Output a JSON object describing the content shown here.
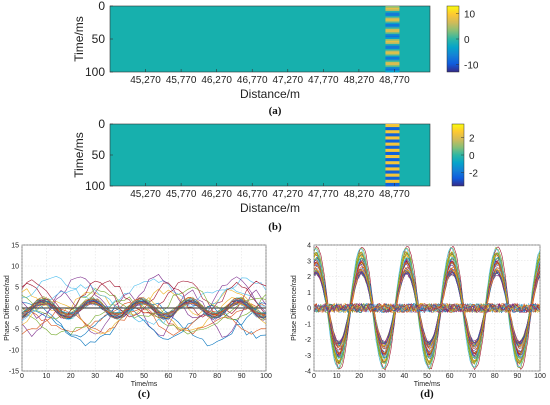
{
  "chart_data": [
    {
      "id": "a",
      "type": "heatmap",
      "panel_label": "(a)",
      "xlabel": "Distance/m",
      "ylabel": "Time/ms",
      "x_ticks": [
        "45,270",
        "45,770",
        "46,270",
        "46,770",
        "47,270",
        "47,770",
        "48,270",
        "48,770"
      ],
      "y_ticks": [
        "0",
        "50",
        "100"
      ],
      "colorbar_ticks": [
        "10",
        "0",
        "-10"
      ],
      "clim": [
        -13,
        13
      ],
      "event_x": 48770,
      "event_amplitude": 8,
      "event_cycles": 6,
      "colormap": [
        "#352a87",
        "#0f5cdd",
        "#1481d6",
        "#06a4ca",
        "#2eb7a4",
        "#87bf77",
        "#d1bb59",
        "#fec832",
        "#f9fb0e"
      ]
    },
    {
      "id": "b",
      "type": "heatmap",
      "panel_label": "(b)",
      "xlabel": "Distance/m",
      "ylabel": "Time/ms",
      "x_ticks": [
        "45,270",
        "45,770",
        "46,270",
        "46,770",
        "47,270",
        "47,770",
        "48,270",
        "48,770"
      ],
      "y_ticks": [
        "0",
        "50",
        "100"
      ],
      "colorbar_ticks": [
        "2",
        "0",
        "-2"
      ],
      "clim": [
        -3.5,
        3.5
      ],
      "event_x": 48770,
      "event_amplitude": 3.5,
      "event_cycles": 10,
      "colormap": [
        "#352a87",
        "#0f5cdd",
        "#1481d6",
        "#06a4ca",
        "#2eb7a4",
        "#87bf77",
        "#d1bb59",
        "#fec832",
        "#f9fb0e"
      ]
    },
    {
      "id": "c",
      "type": "line",
      "panel_label": "(c)",
      "xlabel": "Time/ms",
      "ylabel": "Phase Difference/rad",
      "xlim": [
        0,
        100
      ],
      "ylim": [
        -15,
        15
      ],
      "x_ticks": [
        "0",
        "10",
        "20",
        "30",
        "40",
        "50",
        "60",
        "70",
        "80",
        "90",
        "100"
      ],
      "y_ticks": [
        "15",
        "10",
        "5",
        "0",
        "-5",
        "-10",
        "-15"
      ],
      "grid": true,
      "signal_period_ms": 20,
      "signal_amplitude": 3,
      "noise_amplitude": 4
    },
    {
      "id": "d",
      "type": "line",
      "panel_label": "(d)",
      "xlabel": "Time/ms",
      "ylabel": "Phase Difference/rad",
      "xlim": [
        0,
        100
      ],
      "ylim": [
        -4,
        4
      ],
      "x_ticks": [
        "0",
        "10",
        "20",
        "30",
        "40",
        "50",
        "60",
        "70",
        "80",
        "90",
        "100"
      ],
      "y_ticks": [
        "4",
        "3",
        "2",
        "1",
        "0",
        "-1",
        "-2",
        "-3",
        "-4"
      ],
      "grid": true,
      "signal_period_ms": 20,
      "signal_amplitude": 3.6,
      "noise_amplitude": 0.3
    }
  ],
  "colors": {
    "series": [
      "#0072bd",
      "#d95319",
      "#edb120",
      "#7e2f8e",
      "#77ac30",
      "#4dbeee",
      "#a2142f"
    ]
  }
}
